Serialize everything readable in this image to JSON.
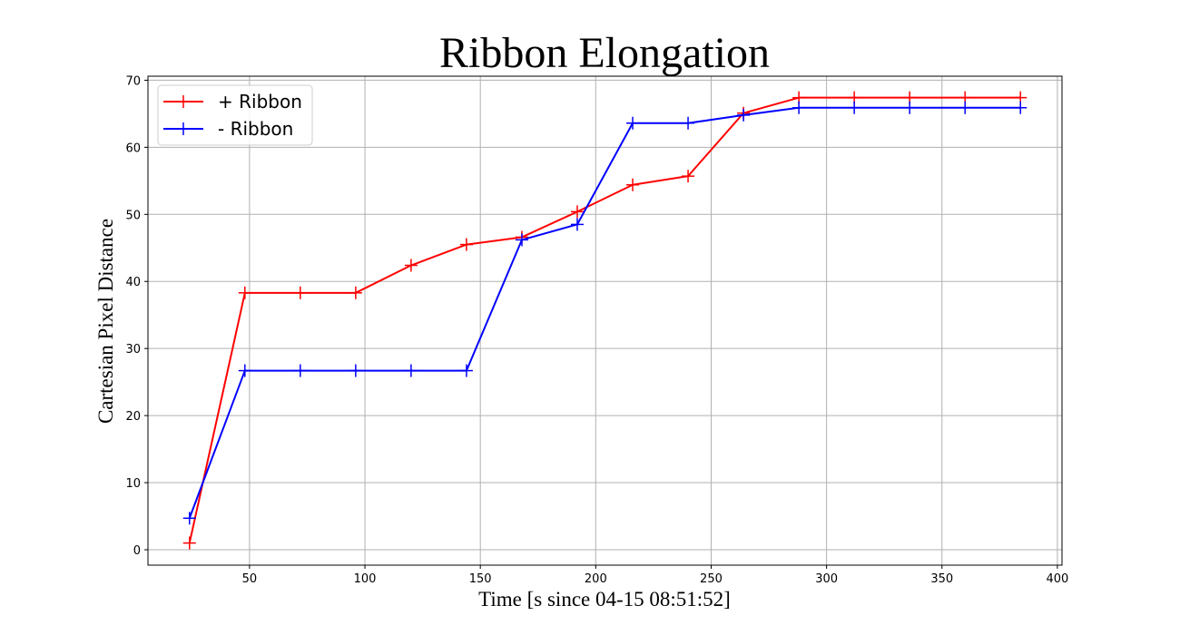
{
  "chart_data": {
    "type": "line",
    "title": "Ribbon Elongation",
    "xlabel": "Time [s since 04-15 08:51:52]",
    "ylabel": "Cartesian Pixel Distance",
    "xlim": [
      6,
      402
    ],
    "ylim": [
      -2.3,
      70.6
    ],
    "xticks": [
      50,
      100,
      150,
      200,
      250,
      300,
      350,
      400
    ],
    "yticks": [
      0,
      10,
      20,
      30,
      40,
      50,
      60,
      70
    ],
    "grid": true,
    "legend_position": "top-left",
    "marker": "+",
    "series": [
      {
        "name": "+ Ribbon",
        "color": "#ff0000",
        "x": [
          24,
          48,
          72,
          96,
          120,
          144,
          168,
          192,
          216,
          240,
          264,
          288,
          312,
          336,
          360,
          384
        ],
        "y": [
          1,
          38.3,
          38.3,
          38.3,
          42.4,
          45.5,
          46.6,
          50.4,
          54.4,
          55.7,
          65.1,
          67.4,
          67.4,
          67.4,
          67.4,
          67.4
        ]
      },
      {
        "name": "- Ribbon",
        "color": "#0000ff",
        "x": [
          24,
          48,
          72,
          96,
          120,
          144,
          168,
          192,
          216,
          240,
          264,
          288,
          312,
          336,
          360,
          384
        ],
        "y": [
          4.7,
          26.7,
          26.7,
          26.7,
          26.7,
          26.7,
          46.2,
          48.5,
          63.6,
          63.6,
          64.8,
          65.9,
          65.9,
          65.9,
          65.9,
          65.9
        ]
      }
    ]
  }
}
